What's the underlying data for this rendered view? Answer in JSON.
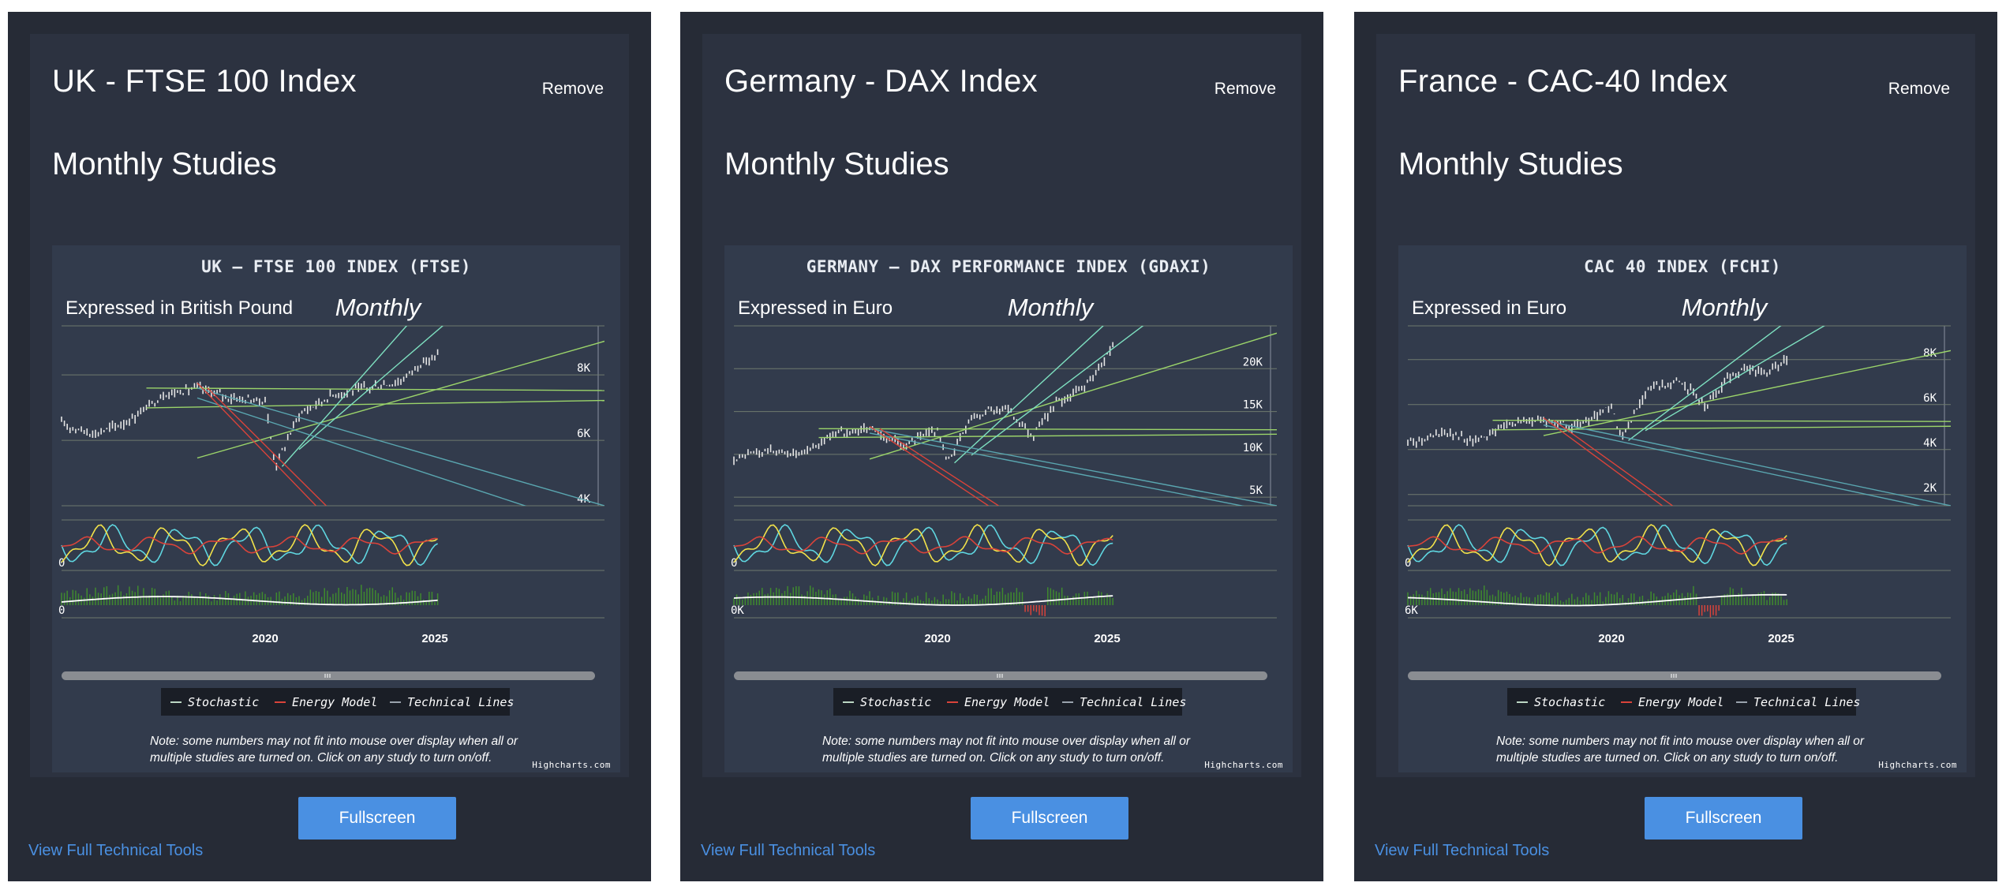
{
  "panels": [
    {
      "title": "UK - FTSE 100 Index",
      "remove_label": "Remove",
      "studies_label": "Monthly Studies",
      "fullscreen_label": "Fullscreen",
      "view_tools_label": "View Full Technical Tools",
      "note": "Note: some numbers may not fit into mouse over display when all or multiple studies are turned on. Click on any study to turn on/off.",
      "credits": "Highcharts.com",
      "legend": [
        "Stochastic",
        "Energy Model",
        "Technical Lines"
      ],
      "chart_data": {
        "type": "line",
        "title": "UK – FTSE 100 INDEX (FTSE)",
        "subtitle": "Expressed in British Pound",
        "period_label": "Monthly",
        "ylim": [
          4000,
          9500
        ],
        "y_ticks": [
          4000,
          6000,
          8000
        ],
        "y_tick_labels": [
          "4K",
          "6K",
          "8K"
        ],
        "x_ticks": [
          2020,
          2025
        ],
        "x_range": [
          2014.0,
          2030.0
        ],
        "osc_label": "0",
        "vol_label": "0",
        "series": [
          {
            "x": [
              2014.0,
              2015.0,
              2016.0,
              2017.0,
              2018.0,
              2019.0,
              2020.0,
              2020.3,
              2021.0,
              2022.0,
              2023.0,
              2024.0,
              2024.5,
              2025.1
            ],
            "values": [
              6500,
              6200,
              6600,
              7400,
              7600,
              7300,
              7200,
              5200,
              6800,
              7400,
              7600,
              7800,
              8300,
              8600
            ]
          }
        ]
      }
    },
    {
      "title": "Germany - DAX Index",
      "remove_label": "Remove",
      "studies_label": "Monthly Studies",
      "fullscreen_label": "Fullscreen",
      "view_tools_label": "View Full Technical Tools",
      "note": "Note: some numbers may not fit into mouse over display when all or multiple studies are turned on. Click on any study to turn on/off.",
      "credits": "Highcharts.com",
      "legend": [
        "Stochastic",
        "Energy Model",
        "Technical Lines"
      ],
      "chart_data": {
        "type": "line",
        "title": "GERMANY – DAX PERFORMANCE INDEX (GDAXI)",
        "subtitle": "Expressed in Euro",
        "period_label": "Monthly",
        "ylim": [
          4000,
          25000
        ],
        "y_ticks": [
          5000,
          10000,
          15000,
          20000
        ],
        "y_tick_labels": [
          "5K",
          "10K",
          "15K",
          "20K"
        ],
        "x_ticks": [
          2020,
          2025
        ],
        "x_range": [
          2014.0,
          2030.0
        ],
        "osc_label": "0",
        "vol_label": "0K",
        "series": [
          {
            "x": [
              2014.0,
              2015.0,
              2016.0,
              2017.0,
              2018.0,
              2019.0,
              2020.0,
              2020.3,
              2021.0,
              2022.0,
              2022.8,
              2023.5,
              2024.0,
              2024.6,
              2025.2
            ],
            "values": [
              9500,
              10500,
              10000,
              12500,
              13000,
              11000,
              13000,
              9000,
              14500,
              15500,
              12000,
              16000,
              17000,
              19000,
              23000
            ]
          }
        ]
      }
    },
    {
      "title": "France - CAC-40 Index",
      "remove_label": "Remove",
      "studies_label": "Monthly Studies",
      "fullscreen_label": "Fullscreen",
      "view_tools_label": "View Full Technical Tools",
      "note": "Note: some numbers may not fit into mouse over display when all or multiple studies are turned on. Click on any study to turn on/off.",
      "credits": "Highcharts.com",
      "legend": [
        "Stochastic",
        "Energy Model",
        "Technical Lines"
      ],
      "chart_data": {
        "type": "line",
        "title": "CAC 40 INDEX (FCHI)",
        "subtitle": "Expressed in Euro",
        "period_label": "Monthly",
        "ylim": [
          1500,
          9500
        ],
        "y_ticks": [
          2000,
          4000,
          6000,
          8000
        ],
        "y_tick_labels": [
          "2K",
          "4K",
          "6K",
          "8K"
        ],
        "x_ticks": [
          2020,
          2025
        ],
        "x_range": [
          2014.0,
          2030.0
        ],
        "osc_label": "0",
        "vol_label": "6K",
        "series": [
          {
            "x": [
              2014.0,
              2015.0,
              2016.0,
              2017.0,
              2018.0,
              2019.0,
              2020.0,
              2020.3,
              2021.0,
              2022.0,
              2022.8,
              2023.5,
              2024.0,
              2024.6,
              2025.2
            ],
            "values": [
              4300,
              4700,
              4400,
              5200,
              5300,
              5000,
              5900,
              4400,
              6600,
              7100,
              5900,
              7300,
              7600,
              7400,
              8000
            ]
          }
        ]
      }
    }
  ]
}
